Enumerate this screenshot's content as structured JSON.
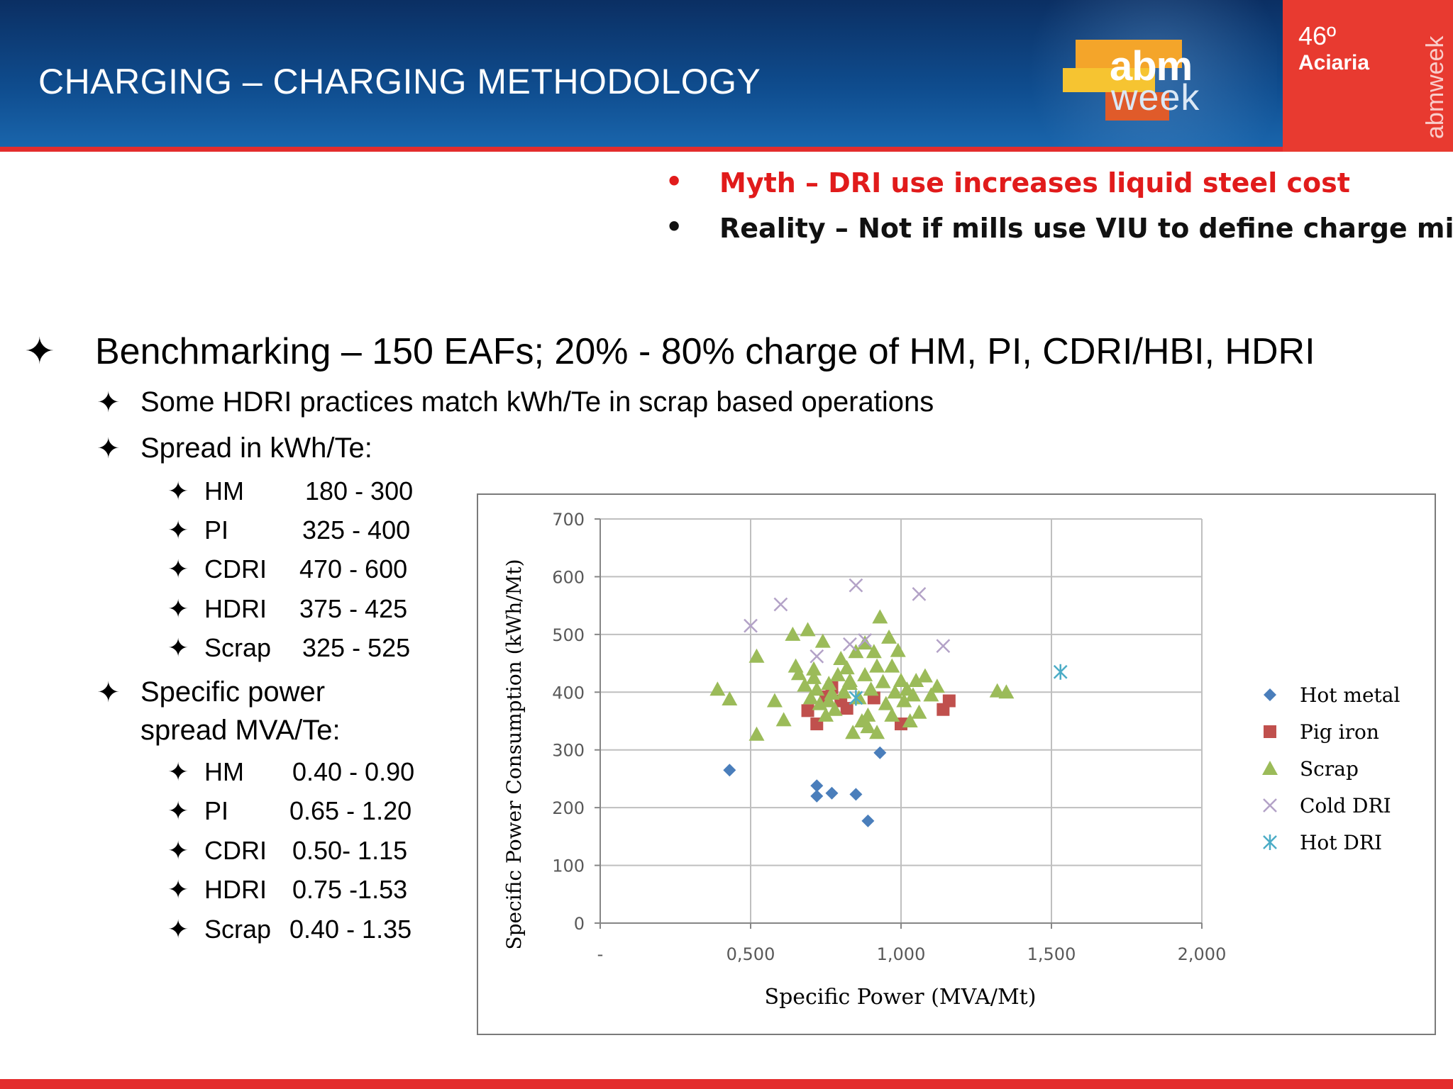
{
  "header": {
    "title": "CHARGING – CHARGING METHODOLOGY",
    "badge_number": "46º",
    "badge_label": "Aciaria",
    "vertical_text": "abmweek",
    "logo_top": "abm",
    "logo_bottom": "week"
  },
  "bullets": {
    "marker": "•",
    "myth": "Myth – DRI use increases liquid steel cost",
    "reality": "Reality – Not if mills use VIU to define charge mixes"
  },
  "outline": {
    "marker": "✦",
    "main": "Benchmarking – 150 EAFs; 20% - 80% charge of HM, PI, CDRI/HBI, HDRI",
    "sub1": "Some HDRI practices match kWh/Te in scrap based operations",
    "sub2": "Spread in kWh/Te:",
    "kwh_spread": [
      {
        "label": "HM",
        "value": "180 - 300"
      },
      {
        "label": "PI",
        "value": "325 - 400"
      },
      {
        "label": "CDRI",
        "value": "470 - 600"
      },
      {
        "label": "HDRI",
        "value": "375 - 425"
      },
      {
        "label": "Scrap",
        "value": "325 - 525"
      }
    ],
    "sub3_line1": "Specific power",
    "sub3_line2": "spread MVA/Te:",
    "mva_spread": [
      {
        "label": "HM",
        "value": "0.40 - 0.90"
      },
      {
        "label": "PI",
        "value": "0.65 - 1.20"
      },
      {
        "label": "CDRI",
        "value": "0.50- 1.15"
      },
      {
        "label": "HDRI",
        "value": "0.75 -1.53"
      },
      {
        "label": "Scrap",
        "value": "0.40 - 1.35"
      }
    ]
  },
  "chart_data": {
    "type": "scatter",
    "title": "",
    "xlabel": "Specific Power (MVA/Mt)",
    "ylabel": "Specific Power Consumption (kWh/Mt)",
    "xlim": [
      0,
      2
    ],
    "ylim": [
      0,
      700
    ],
    "x_ticks": [
      0,
      0.5,
      1.0,
      1.5,
      2.0
    ],
    "x_tick_labels": [
      "-",
      "0,500",
      "1,000",
      "1,500",
      "2,000"
    ],
    "y_ticks": [
      0,
      100,
      200,
      300,
      400,
      500,
      600,
      700
    ],
    "y_tick_labels": [
      "0",
      "100",
      "200",
      "300",
      "400",
      "500",
      "600",
      "700"
    ],
    "grid": true,
    "legend": "right",
    "series": [
      {
        "name": "Hot metal",
        "marker": "diamond",
        "color": "#4a7ebb",
        "points": [
          [
            0.43,
            265
          ],
          [
            0.72,
            238
          ],
          [
            0.72,
            220
          ],
          [
            0.77,
            225
          ],
          [
            0.85,
            223
          ],
          [
            0.89,
            177
          ],
          [
            0.93,
            295
          ]
        ]
      },
      {
        "name": "Pig iron",
        "marker": "square",
        "color": "#c0504d",
        "points": [
          [
            0.69,
            368
          ],
          [
            0.72,
            345
          ],
          [
            0.75,
            392
          ],
          [
            0.77,
            408
          ],
          [
            0.8,
            385
          ],
          [
            0.82,
            372
          ],
          [
            0.91,
            390
          ],
          [
            1.0,
            345
          ],
          [
            1.14,
            370
          ],
          [
            1.16,
            385
          ]
        ]
      },
      {
        "name": "Scrap",
        "marker": "triangle",
        "color": "#9bbb59",
        "points": [
          [
            0.39,
            405
          ],
          [
            0.43,
            388
          ],
          [
            0.52,
            462
          ],
          [
            0.52,
            327
          ],
          [
            0.58,
            385
          ],
          [
            0.61,
            352
          ],
          [
            0.64,
            500
          ],
          [
            0.65,
            445
          ],
          [
            0.66,
            432
          ],
          [
            0.68,
            412
          ],
          [
            0.69,
            508
          ],
          [
            0.7,
            390
          ],
          [
            0.71,
            425
          ],
          [
            0.72,
            405
          ],
          [
            0.73,
            380
          ],
          [
            0.74,
            488
          ],
          [
            0.75,
            360
          ],
          [
            0.76,
            415
          ],
          [
            0.77,
            398
          ],
          [
            0.78,
            370
          ],
          [
            0.79,
            430
          ],
          [
            0.8,
            458
          ],
          [
            0.81,
            400
          ],
          [
            0.82,
            442
          ],
          [
            0.83,
            420
          ],
          [
            0.84,
            330
          ],
          [
            0.85,
            470
          ],
          [
            0.86,
            390
          ],
          [
            0.87,
            350
          ],
          [
            0.88,
            485
          ],
          [
            0.88,
            430
          ],
          [
            0.89,
            360
          ],
          [
            0.9,
            405
          ],
          [
            0.91,
            470
          ],
          [
            0.92,
            445
          ],
          [
            0.93,
            530
          ],
          [
            0.94,
            418
          ],
          [
            0.95,
            380
          ],
          [
            0.96,
            495
          ],
          [
            0.97,
            445
          ],
          [
            0.98,
            400
          ],
          [
            0.99,
            472
          ],
          [
            1.0,
            420
          ],
          [
            1.01,
            385
          ],
          [
            1.02,
            405
          ],
          [
            1.03,
            350
          ],
          [
            1.05,
            420
          ],
          [
            1.06,
            365
          ],
          [
            1.08,
            428
          ],
          [
            1.1,
            395
          ],
          [
            1.12,
            410
          ],
          [
            1.32,
            402
          ],
          [
            1.35,
            400
          ],
          [
            0.89,
            340
          ],
          [
            0.76,
            385
          ],
          [
            0.92,
            330
          ],
          [
            0.97,
            360
          ],
          [
            1.04,
            395
          ],
          [
            0.83,
            415
          ],
          [
            0.71,
            440
          ]
        ]
      },
      {
        "name": "Cold DRI",
        "marker": "x",
        "color": "#b3a2c7",
        "points": [
          [
            0.5,
            515
          ],
          [
            0.6,
            552
          ],
          [
            0.72,
            462
          ],
          [
            0.83,
            483
          ],
          [
            0.85,
            585
          ],
          [
            0.88,
            490
          ],
          [
            1.06,
            570
          ],
          [
            1.14,
            480
          ]
        ]
      },
      {
        "name": "Hot DRI",
        "marker": "asterisk",
        "color": "#4bacc6",
        "points": [
          [
            0.85,
            390
          ],
          [
            1.53,
            435
          ]
        ]
      }
    ]
  }
}
